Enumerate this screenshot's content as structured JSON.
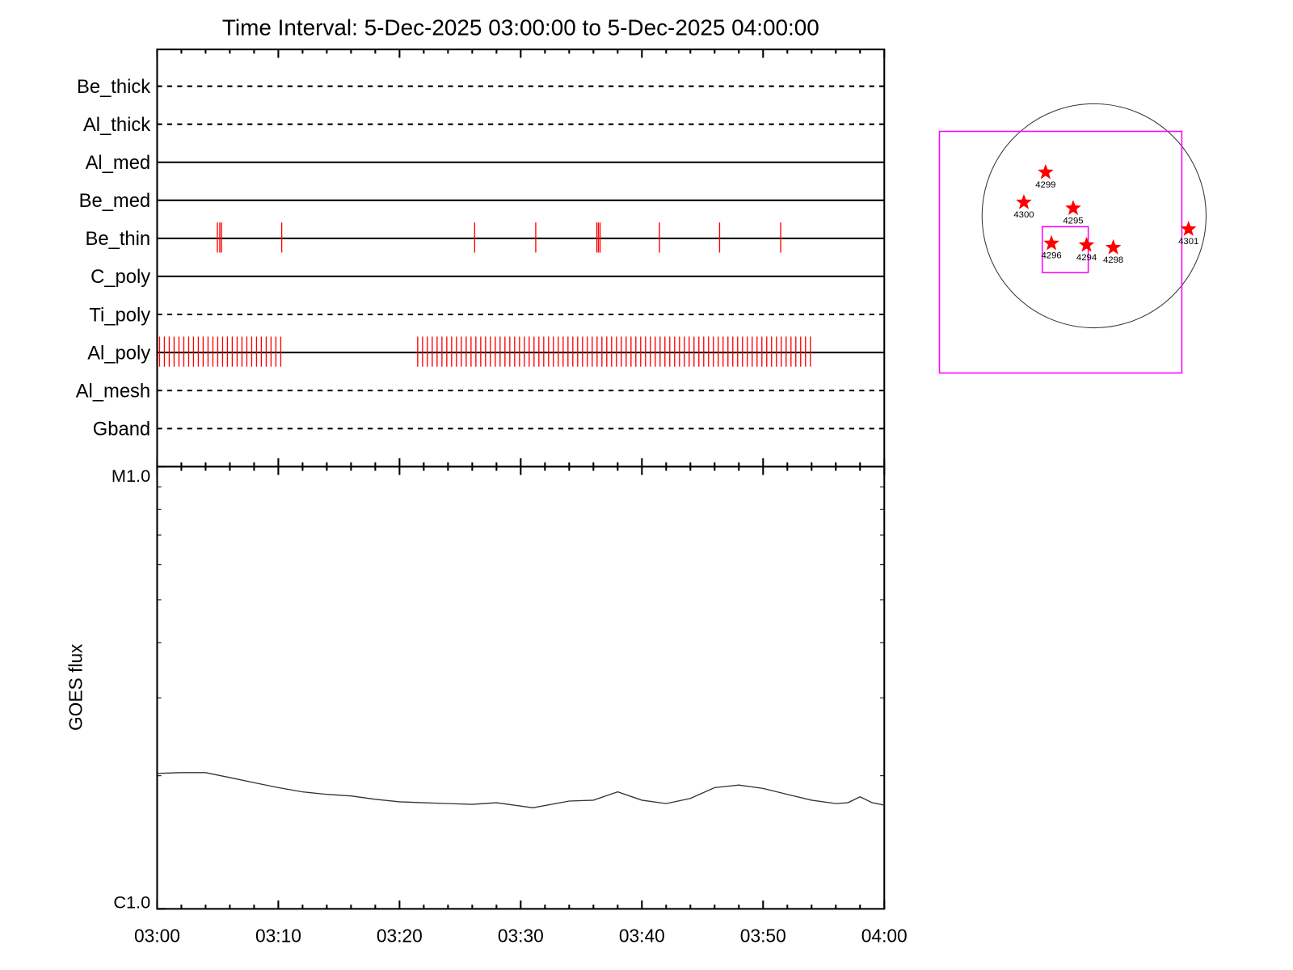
{
  "chart_data": [
    {
      "type": "event",
      "title": "Time Interval:  5-Dec-2025 03:00:00 to  5-Dec-2025 04:00:00",
      "categories": [
        "Be_thick",
        "Al_thick",
        "Al_med",
        "Be_med",
        "Be_thin",
        "C_poly",
        "Ti_poly",
        "Al_poly",
        "Al_mesh",
        "Gband"
      ],
      "line_styles": [
        "dashed",
        "dashed",
        "solid",
        "solid",
        "solid",
        "solid",
        "dashed",
        "solid",
        "dashed",
        "dashed"
      ],
      "color": "#ff0000",
      "events": [
        [],
        [],
        [],
        [],
        [
          4.97,
          5.17,
          5.31,
          10.28,
          26.2,
          31.24,
          36.28,
          36.41,
          36.55,
          41.45,
          46.41,
          51.45
        ],
        [],
        [],
        [
          0.2,
          0.6,
          1.0,
          1.4,
          1.8,
          2.2,
          2.6,
          3.0,
          3.4,
          3.8,
          4.2,
          4.6,
          5.0,
          5.4,
          5.8,
          6.2,
          6.6,
          7.0,
          7.4,
          7.8,
          8.2,
          8.6,
          9.0,
          9.4,
          9.8,
          10.2,
          21.5,
          21.9,
          22.3,
          22.7,
          23.1,
          23.5,
          23.9,
          24.3,
          24.7,
          25.1,
          25.5,
          25.9,
          26.3,
          26.7,
          27.1,
          27.5,
          27.9,
          28.3,
          28.7,
          29.1,
          29.5,
          29.9,
          30.3,
          30.7,
          31.1,
          31.5,
          31.9,
          32.3,
          32.7,
          33.1,
          33.5,
          33.9,
          34.3,
          34.7,
          35.1,
          35.5,
          35.9,
          36.3,
          36.7,
          37.1,
          37.5,
          37.9,
          38.3,
          38.7,
          39.1,
          39.5,
          39.9,
          40.3,
          40.7,
          41.1,
          41.5,
          41.9,
          42.3,
          42.7,
          43.1,
          43.5,
          43.9,
          44.3,
          44.7,
          45.1,
          45.5,
          45.9,
          46.3,
          46.7,
          47.1,
          47.5,
          47.9,
          48.3,
          48.7,
          49.1,
          49.5,
          49.9,
          50.3,
          50.7,
          51.1,
          51.5,
          51.9,
          52.3,
          52.7,
          53.1,
          53.5,
          53.9
        ],
        [],
        []
      ],
      "xlim": [
        0,
        60
      ],
      "xticks": [
        0,
        10,
        20,
        30,
        40,
        50,
        60
      ],
      "x_minor_ticks": [
        2,
        4,
        6,
        8,
        12,
        14,
        16,
        18,
        22,
        24,
        26,
        28,
        32,
        34,
        36,
        38,
        42,
        44,
        46,
        48,
        52,
        54,
        56,
        58
      ]
    },
    {
      "type": "line",
      "ylabel": "GOES flux",
      "log_y": true,
      "x": [
        0,
        2,
        4,
        6,
        8,
        10,
        12,
        14,
        16,
        18,
        20,
        22,
        24,
        26,
        28,
        30,
        31,
        34,
        36,
        38,
        40,
        42,
        44,
        46,
        48,
        50,
        52,
        54,
        56,
        57,
        58,
        59,
        60
      ],
      "series": [
        {
          "color": "#333333",
          "values": [
            2.024e-06,
            2.033e-06,
            2.033e-06,
            1.981e-06,
            1.929e-06,
            1.88e-06,
            1.839e-06,
            1.815e-06,
            1.8e-06,
            1.769e-06,
            1.746e-06,
            1.738e-06,
            1.73e-06,
            1.723e-06,
            1.738e-06,
            1.708e-06,
            1.693e-06,
            1.753e-06,
            1.761e-06,
            1.839e-06,
            1.761e-06,
            1.73e-06,
            1.777e-06,
            1.88e-06,
            1.905e-06,
            1.872e-06,
            1.815e-06,
            1.761e-06,
            1.73e-06,
            1.738e-06,
            1.792e-06,
            1.738e-06,
            1.716e-06
          ]
        }
      ],
      "xlim": [
        0,
        60
      ],
      "xticks": [
        {
          "value": 0,
          "label": "03:00"
        },
        {
          "value": 10,
          "label": "03:10"
        },
        {
          "value": 20,
          "label": "03:20"
        },
        {
          "value": 30,
          "label": "03:30"
        },
        {
          "value": 40,
          "label": "03:40"
        },
        {
          "value": 50,
          "label": "03:50"
        },
        {
          "value": 60,
          "label": "04:00"
        }
      ],
      "x_minor_ticks": [
        2,
        4,
        6,
        8,
        12,
        14,
        16,
        18,
        22,
        24,
        26,
        28,
        32,
        34,
        36,
        38,
        42,
        44,
        46,
        48,
        52,
        54,
        56,
        58
      ],
      "ylim": [
        1e-06,
        1e-05
      ],
      "yticks": [
        {
          "value": 1e-06,
          "label": "C1.0"
        },
        {
          "value": 1e-05,
          "label": "M1.0"
        }
      ],
      "y_minor_ticks": [
        2e-06,
        3e-06,
        4e-06,
        5e-06,
        6e-06,
        7e-06,
        8e-06,
        9e-06
      ]
    }
  ],
  "map": {
    "regions": [
      "4299",
      "4300",
      "4295",
      "4296",
      "4294",
      "4298",
      "4301"
    ],
    "star_color": "#ff0000",
    "box_color": "#ff00ff"
  }
}
